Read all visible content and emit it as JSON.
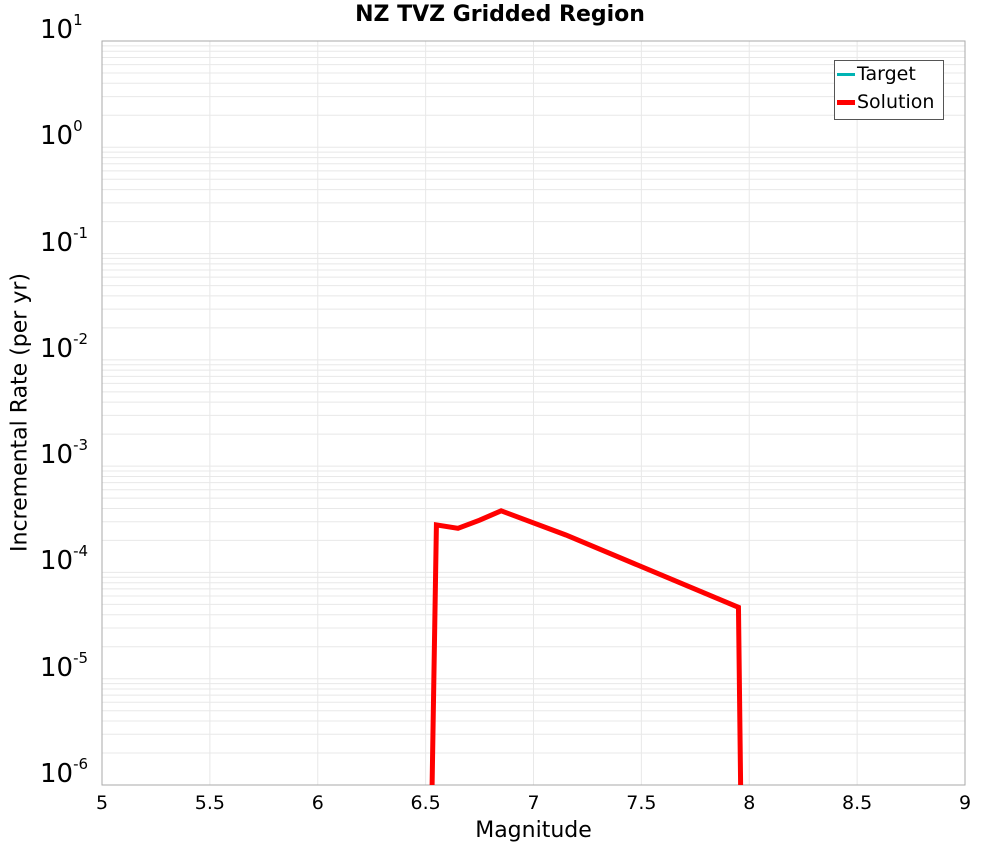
{
  "chart_data": {
    "type": "line",
    "title": "NZ TVZ Gridded Region",
    "xlabel": "Magnitude",
    "ylabel": "Incremental Rate (per yr)",
    "xlim": [
      5,
      9
    ],
    "ylim": [
      1e-06,
      10
    ],
    "yscale": "log",
    "grid": true,
    "legend_position": "upper right",
    "x_ticks": [
      "5",
      "5.5",
      "6",
      "6.5",
      "7",
      "7.5",
      "8",
      "8.5",
      "9"
    ],
    "y_ticks": [
      {
        "base": "10",
        "exp": "1"
      },
      {
        "base": "10",
        "exp": "0"
      },
      {
        "base": "10",
        "exp": "-1"
      },
      {
        "base": "10",
        "exp": "-2"
      },
      {
        "base": "10",
        "exp": "-3"
      },
      {
        "base": "10",
        "exp": "-4"
      },
      {
        "base": "10",
        "exp": "-5"
      },
      {
        "base": "10",
        "exp": "-6"
      }
    ],
    "series": [
      {
        "name": "Target",
        "color": "#00b4b4",
        "x": [],
        "y": []
      },
      {
        "name": "Solution",
        "color": "#ff0000",
        "x": [
          6.53,
          6.55,
          6.65,
          6.75,
          6.85,
          7.15,
          7.95,
          7.96
        ],
        "y": [
          1e-06,
          0.00028,
          0.00026,
          0.00031,
          0.00038,
          0.000225,
          4.7e-05,
          1e-06
        ]
      }
    ]
  }
}
